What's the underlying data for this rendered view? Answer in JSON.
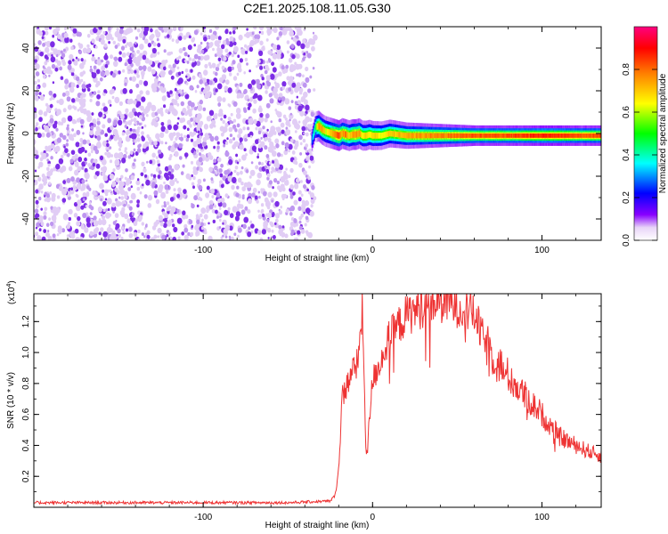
{
  "figure_title": "C2E1.2025.108.11.05.G30",
  "chart_data": [
    {
      "type": "heatmap",
      "title": "C2E1.2025.108.11.05.G30",
      "xlabel": "Height of straight line (km)",
      "ylabel": "Frequency (Hz)",
      "xlim": [
        -200,
        135
      ],
      "ylim": [
        -50,
        50
      ],
      "xticks": [
        -100,
        0,
        100
      ],
      "xtick_labels": [
        "-100",
        "0",
        "100"
      ],
      "yticks": [
        -40,
        -20,
        0,
        20,
        40
      ],
      "ytick_labels": [
        "-40",
        "-20",
        "0",
        "20",
        "40"
      ],
      "colorbar": {
        "label": "Normalized spectral amplitude",
        "range": [
          0,
          1
        ],
        "ticks": [
          0.0,
          0.2,
          0.4,
          0.6,
          0.8
        ],
        "tick_labels": [
          "0.0",
          "0.2",
          "0.4",
          "0.6",
          "0.8"
        ],
        "colors": [
          "#ffffff",
          "#e8d4f8",
          "#8800ff",
          "#0000ff",
          "#00ffff",
          "#00ff00",
          "#ffff00",
          "#ff8000",
          "#ff0000",
          "#ff0080"
        ]
      },
      "noise_region": {
        "x_range": [
          -200,
          -35
        ],
        "y_range": [
          -50,
          50
        ],
        "amplitude_range": [
          0.0,
          0.2
        ]
      },
      "signal_ridge": {
        "x": [
          -36,
          -34,
          -32,
          -30,
          -28,
          -26,
          -24,
          -22,
          -20,
          -18,
          -16,
          -14,
          -12,
          -10,
          -8,
          -6,
          -4,
          -2,
          0,
          5,
          10,
          20,
          40,
          60,
          80,
          100,
          110,
          120,
          135
        ],
        "frequency": [
          -3,
          3,
          3.5,
          2,
          1,
          0.5,
          0,
          -0.5,
          -1,
          0,
          -0.5,
          -1,
          -0.5,
          -0.5,
          0,
          -1,
          -1,
          -0.5,
          -1,
          -1,
          0,
          -1,
          -1,
          -1,
          -1,
          -1,
          -1,
          -1,
          -1
        ],
        "peak_amplitude": [
          0.3,
          0.5,
          0.8,
          0.8,
          0.7,
          0.7,
          0.8,
          0.85,
          0.9,
          0.8,
          0.85,
          0.75,
          0.8,
          0.85,
          0.8,
          0.7,
          0.75,
          0.7,
          0.75,
          0.7,
          0.75,
          0.8,
          0.85,
          0.9,
          0.9,
          0.95,
          0.95,
          0.9,
          0.9
        ]
      }
    },
    {
      "type": "line",
      "xlabel": "Height of straight line (km)",
      "ylabel": "SNR (10 * v/v)",
      "y_multiplier": "(x10",
      "y_multiplier_exp": "4",
      "y_multiplier_close": ")",
      "xlim": [
        -200,
        135
      ],
      "ylim": [
        0,
        13800
      ],
      "xticks": [
        -100,
        0,
        100
      ],
      "xtick_labels": [
        "-100",
        "0",
        "100"
      ],
      "yticks": [
        2000,
        4000,
        6000,
        8000,
        10000,
        12000
      ],
      "ytick_labels": [
        "0.2",
        "0.4",
        "0.6",
        "0.8",
        "1.0",
        "1.2"
      ],
      "series": [
        {
          "color": "#ee3333",
          "x": [
            -200,
            -150,
            -100,
            -50,
            -25,
            -22,
            -20,
            -18,
            -17,
            -15,
            -12,
            -10,
            -8,
            -6,
            -4,
            -3,
            -2,
            0,
            5,
            10,
            20,
            30,
            40,
            50,
            55,
            60,
            65,
            70,
            80,
            90,
            100,
            110,
            120,
            130,
            135
          ],
          "values": [
            300,
            300,
            300,
            300,
            400,
            800,
            2500,
            7000,
            7600,
            7900,
            9000,
            8800,
            10000,
            12800,
            4000,
            3500,
            5500,
            8200,
            9500,
            11000,
            12400,
            13000,
            13300,
            13000,
            12800,
            12500,
            11000,
            10000,
            8500,
            7200,
            6000,
            4600,
            4000,
            3500,
            3300
          ]
        }
      ]
    }
  ]
}
